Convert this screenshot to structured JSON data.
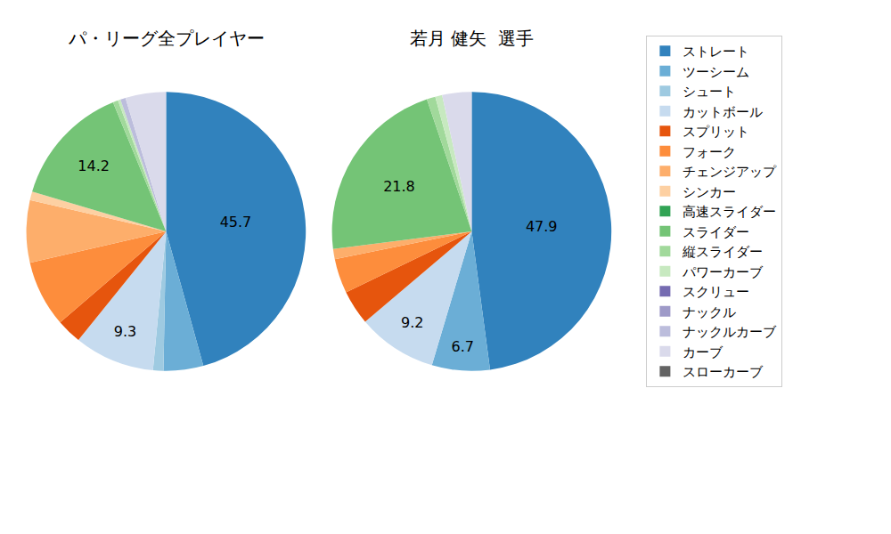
{
  "chart_data": [
    {
      "type": "pie",
      "title": "パ・リーグ全プレイヤー",
      "legend": "upper right",
      "data_labels": true,
      "categories": [
        "ストレート",
        "ツーシーム",
        "シュート",
        "カットボール",
        "スプリット",
        "フォーク",
        "チェンジアップ",
        "シンカー",
        "高速スライダー",
        "スライダー",
        "縦スライダー",
        "パワーカーブ",
        "スクリュー",
        "ナックル",
        "ナックルカーブ",
        "カーブ",
        "スローカーブ"
      ],
      "values": [
        45.7,
        4.6,
        1.2,
        9.3,
        2.9,
        7.7,
        7.2,
        1.0,
        0,
        14.2,
        0.6,
        0.3,
        0,
        0,
        0.6,
        4.7,
        0
      ],
      "value_labels": [
        "45.7",
        null,
        null,
        "9.3",
        null,
        null,
        null,
        null,
        null,
        "14.2",
        null,
        null,
        null,
        null,
        null,
        null,
        null
      ],
      "colors": [
        "#3182bd",
        "#6baed6",
        "#9ecae1",
        "#c6dbef",
        "#e6550d",
        "#fd8d3c",
        "#fdae6b",
        "#fdd0a2",
        "#31a354",
        "#74c476",
        "#a1d99b",
        "#c7e9c0",
        "#756bb1",
        "#9e9ac8",
        "#bcbddc",
        "#dadaeb",
        "#636363"
      ]
    },
    {
      "type": "pie",
      "title": "若月 健矢  選手",
      "legend": "upper right",
      "data_labels": true,
      "categories": [
        "ストレート",
        "ツーシーム",
        "シュート",
        "カットボール",
        "スプリット",
        "フォーク",
        "チェンジアップ",
        "シンカー",
        "高速スライダー",
        "スライダー",
        "縦スライダー",
        "パワーカーブ",
        "スクリュー",
        "ナックル",
        "ナックルカーブ",
        "カーブ",
        "スローカーブ"
      ],
      "values": [
        47.9,
        6.7,
        0,
        9.2,
        4.0,
        4.0,
        1.2,
        0,
        0,
        21.8,
        1.0,
        0.8,
        0,
        0,
        0,
        3.4,
        0
      ],
      "value_labels": [
        "47.9",
        "6.7",
        null,
        "9.2",
        null,
        null,
        null,
        null,
        null,
        "21.8",
        null,
        null,
        null,
        null,
        null,
        null,
        null
      ],
      "colors": [
        "#3182bd",
        "#6baed6",
        "#9ecae1",
        "#c6dbef",
        "#e6550d",
        "#fd8d3c",
        "#fdae6b",
        "#fdd0a2",
        "#31a354",
        "#74c476",
        "#a1d99b",
        "#c7e9c0",
        "#756bb1",
        "#9e9ac8",
        "#bcbddc",
        "#dadaeb",
        "#636363"
      ]
    }
  ]
}
